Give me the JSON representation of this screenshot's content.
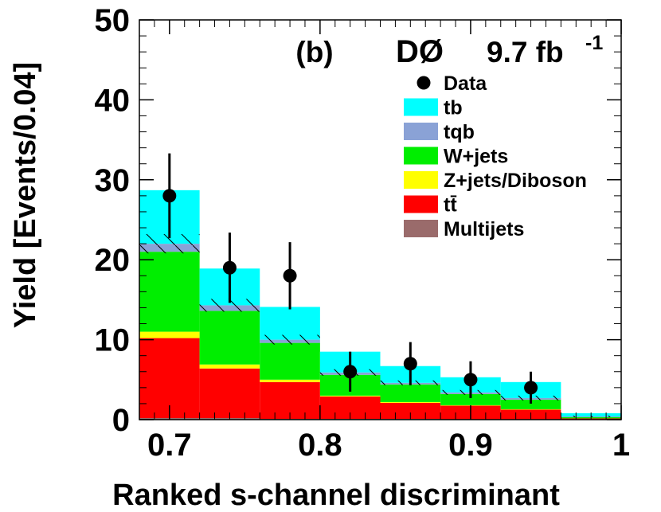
{
  "chart_data": {
    "type": "bar",
    "stacked": true,
    "title": "",
    "panel_label": "(b)",
    "experiment": "DØ",
    "luminosity": "9.7 fb",
    "luminosity_exponent": "-1",
    "xlabel": "Ranked s-channel discriminant",
    "ylabel": "Yield [Events/0.04]",
    "xlim": [
      0.68,
      1.0
    ],
    "ylim": [
      0,
      50
    ],
    "xticks": [
      0.7,
      0.8,
      0.9,
      1.0
    ],
    "xtick_labels": [
      "0.7",
      "0.8",
      "0.9",
      "1"
    ],
    "yticks": [
      0,
      10,
      20,
      30,
      40,
      50
    ],
    "ytick_labels": [
      "0",
      "10",
      "20",
      "30",
      "40",
      "50"
    ],
    "bin_edges": [
      0.68,
      0.72,
      0.76,
      0.8,
      0.84,
      0.88,
      0.92,
      0.96,
      1.0
    ],
    "series": [
      {
        "name": "Multijets",
        "color": "#9a6b6b",
        "values": [
          0.2,
          0.2,
          0.1,
          0.1,
          0.1,
          0.05,
          0.05,
          0.05
        ]
      },
      {
        "name": "tt̄",
        "color": "#ff0000",
        "values": [
          10.0,
          6.2,
          4.6,
          2.8,
          2.0,
          1.7,
          1.2,
          0.1
        ]
      },
      {
        "name": "Z+jets/Diboson",
        "color": "#ffff00",
        "values": [
          0.8,
          0.5,
          0.3,
          0.1,
          0.1,
          0.05,
          0.05,
          0.0
        ]
      },
      {
        "name": "W+jets",
        "color": "#00ee00",
        "values": [
          10.0,
          6.7,
          4.6,
          2.6,
          2.2,
          1.4,
          1.2,
          0.15
        ]
      },
      {
        "name": "tqb",
        "color": "#8aa2d6",
        "values": [
          1.0,
          0.7,
          0.4,
          0.3,
          0.2,
          0.2,
          0.2,
          0.1
        ]
      },
      {
        "name": "tb",
        "color": "#00ffff",
        "values": [
          6.7,
          4.6,
          4.1,
          2.6,
          2.1,
          1.9,
          2.0,
          0.4
        ]
      }
    ],
    "data": {
      "name": "Data",
      "x": [
        0.7,
        0.74,
        0.78,
        0.82,
        0.86,
        0.9,
        0.94
      ],
      "y": [
        28,
        19,
        18,
        6,
        7,
        5,
        4
      ],
      "err": [
        5.3,
        4.4,
        4.2,
        2.5,
        2.7,
        2.3,
        2.0
      ]
    },
    "uncertainty_band": {
      "center": [
        22.0,
        14.3,
        10.0,
        5.9,
        4.6,
        3.4,
        2.7,
        0.4
      ],
      "half_width": [
        1.2,
        0.8,
        0.6,
        0.4,
        0.3,
        0.3,
        0.3,
        0.1
      ]
    },
    "legend": {
      "placement": "top-right",
      "entries": [
        "Data",
        "tb",
        "tqb",
        "W+jets",
        "Z+jets/Diboson",
        "tt̄",
        "Multijets"
      ]
    }
  }
}
